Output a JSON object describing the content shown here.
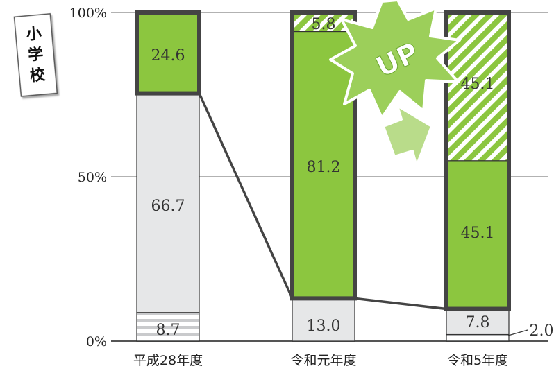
{
  "tag": {
    "chars": [
      "小",
      "学",
      "校"
    ]
  },
  "badge": {
    "text": "UP"
  },
  "colors": {
    "green": "#8cc63f",
    "green_light": "#b9dc8a",
    "gray": "#e6e7e8",
    "outline": "#444444",
    "gridline": "#999999"
  },
  "chart_data": {
    "type": "bar",
    "stacked": true,
    "categories": [
      "平成28年度",
      "令和元年度",
      "令和5年度"
    ],
    "y_ticks": [
      "0%",
      "50%",
      "100%"
    ],
    "ylim": [
      0,
      100
    ],
    "series": [
      {
        "style": "gray-hatched",
        "values": [
          8.7,
          0,
          2.0
        ]
      },
      {
        "style": "gray",
        "values": [
          66.7,
          13.0,
          7.8
        ]
      },
      {
        "style": "green",
        "values": [
          24.6,
          81.2,
          45.1
        ]
      },
      {
        "style": "green-hatched",
        "values": [
          0,
          5.8,
          45.1
        ]
      }
    ],
    "data_labels": [
      [
        {
          "text": "8.7"
        },
        {
          "text": "66.7"
        },
        {
          "text": "24.6"
        }
      ],
      [
        {
          "text": "13.0"
        },
        {
          "text": "81.2"
        },
        {
          "text": "5.8"
        }
      ],
      [
        {
          "text": "2.0"
        },
        {
          "text": "7.8"
        },
        {
          "text": "45.1"
        },
        {
          "text": "45.1"
        }
      ]
    ]
  }
}
